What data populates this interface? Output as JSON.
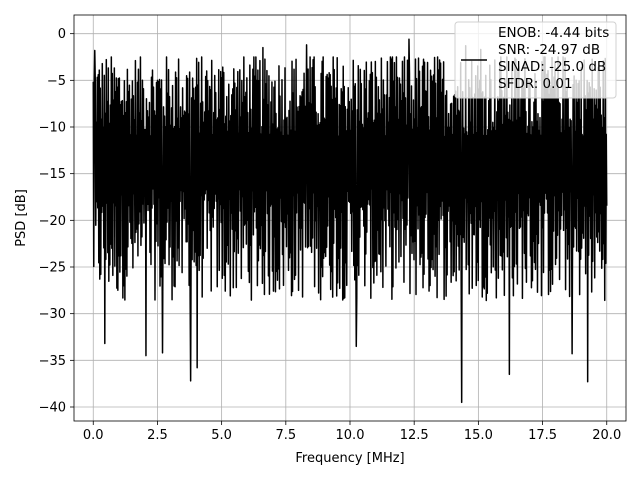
{
  "chart_data": {
    "type": "line",
    "title": "",
    "xlabel": "Frequency [MHz]",
    "ylabel": "PSD [dB]",
    "xlim": [
      -0.75,
      20.75
    ],
    "ylim": [
      -41.5,
      2
    ],
    "x_ticks": [
      0,
      2.5,
      5,
      7.5,
      10,
      12.5,
      15,
      17.5,
      20
    ],
    "x_tick_labels": [
      "0.0",
      "2.5",
      "5.0",
      "7.5",
      "10.0",
      "12.5",
      "15.0",
      "17.5",
      "20.0"
    ],
    "y_ticks": [
      0,
      -5,
      -10,
      -15,
      -20,
      -25,
      -30,
      -35,
      -40
    ],
    "y_tick_labels": [
      "0",
      "−5",
      "−10",
      "−15",
      "−20",
      "−25",
      "−30",
      "−35",
      "−40"
    ],
    "grid": true,
    "legend_position": "top-right",
    "legend": [
      "ENOB: -4.44 bits",
      "SNR: -24.97 dB",
      "SINAD: -25.0 dB",
      "SFDR: 0.01"
    ],
    "series": [
      {
        "color": "#000000",
        "x_range": [
          0,
          20
        ],
        "num_points": 1024,
        "typical_upper_db": -7,
        "typical_lower_db": -22,
        "peaks": [
          {
            "x": 0.05,
            "y": -1.8
          },
          {
            "x": 6.6,
            "y": -1.5
          },
          {
            "x": 8.3,
            "y": -1.2
          },
          {
            "x": 12.3,
            "y": -0.6
          },
          {
            "x": 14.5,
            "y": -1.3
          },
          {
            "x": 15.1,
            "y": -1.7
          }
        ],
        "dips": [
          {
            "x": 0.45,
            "y": -33.2
          },
          {
            "x": 2.05,
            "y": -34.5
          },
          {
            "x": 2.7,
            "y": -34.2
          },
          {
            "x": 3.8,
            "y": -37.2
          },
          {
            "x": 4.05,
            "y": -35.8
          },
          {
            "x": 10.25,
            "y": -33.5
          },
          {
            "x": 14.35,
            "y": -39.5
          },
          {
            "x": 16.2,
            "y": -36.5
          },
          {
            "x": 18.65,
            "y": -34.3
          },
          {
            "x": 19.25,
            "y": -37.3
          }
        ]
      }
    ]
  }
}
